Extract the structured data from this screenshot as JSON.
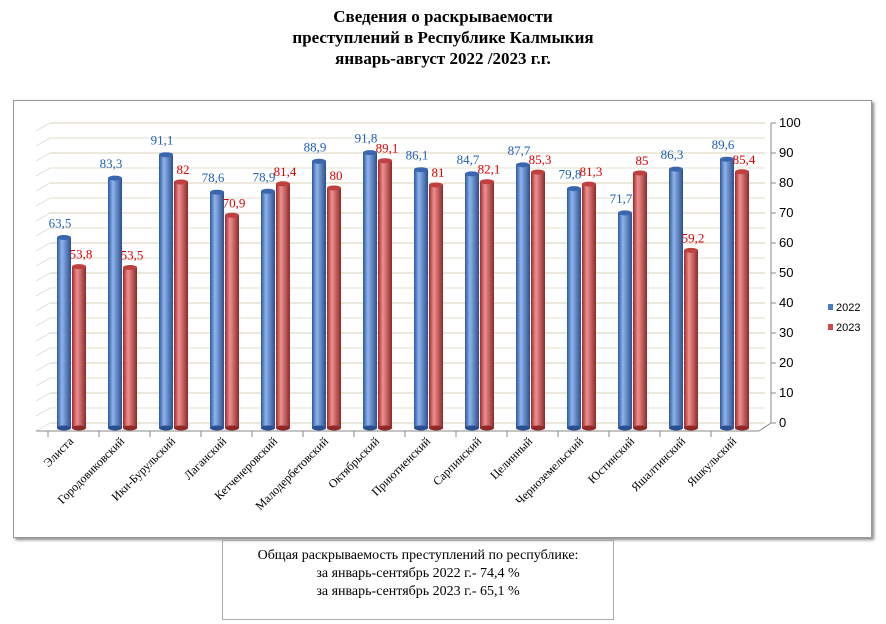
{
  "title": [
    "Сведения о раскрываемости",
    "преступлений в  Республике Калмыкия",
    "январь-август 2022 /2023 г.г."
  ],
  "chart_data": {
    "type": "bar",
    "title": "Сведения о раскрываемости преступлений в  Республике Калмыкия январь-август 2022 /2023 г.г.",
    "categories": [
      "Элиста",
      "Городовиковский",
      "Ики-Бурульский",
      "Лаганский",
      "Кетченеровский",
      "Малодербетовский",
      "Октябрьский",
      "Приютненский",
      "Сарпинский",
      "Целинный",
      "Черноземельский",
      "Юстинский",
      "Яшалтинский",
      "Яшкульский"
    ],
    "series": [
      {
        "name": "2022",
        "color": "#4a7cc4",
        "label_color": "#1f5fb8",
        "values": [
          63.5,
          83.3,
          91.1,
          78.6,
          78.9,
          88.9,
          91.8,
          86.1,
          84.7,
          87.7,
          79.8,
          71.7,
          86.3,
          89.6
        ],
        "labels": [
          "63,5",
          "83,3",
          "91,1",
          "78,6",
          "78,9",
          "88,9",
          "91,8",
          "86,1",
          "84,7",
          "87,7",
          "79,8",
          "71,7",
          "86,3",
          "89,6"
        ]
      },
      {
        "name": "2023",
        "color": "#d04848",
        "label_color": "#e00000",
        "values": [
          53.8,
          53.5,
          82,
          70.9,
          81.4,
          80,
          89.1,
          81,
          82.1,
          85.3,
          81.3,
          85,
          59.2,
          85.4
        ],
        "labels": [
          "53,8",
          "53,5",
          "82",
          "70,9",
          "81,4",
          "80",
          "89,1",
          "81",
          "82,1",
          "85,3",
          "81,3",
          "85",
          "59,2",
          "85,4"
        ]
      }
    ],
    "ylim": [
      0,
      100
    ],
    "yticks": [
      "0",
      "10",
      "20",
      "30",
      "40",
      "50",
      "60",
      "70",
      "80",
      "90",
      "100"
    ],
    "grid": true,
    "legend": "right",
    "three_d": true
  },
  "summary": [
    "Общая раскрываемость преступлений  по республике:",
    "за январь-сентябрь 2022 г.- 74,4 %",
    "за январь-сентябрь 2023 г.- 65,1 %"
  ]
}
